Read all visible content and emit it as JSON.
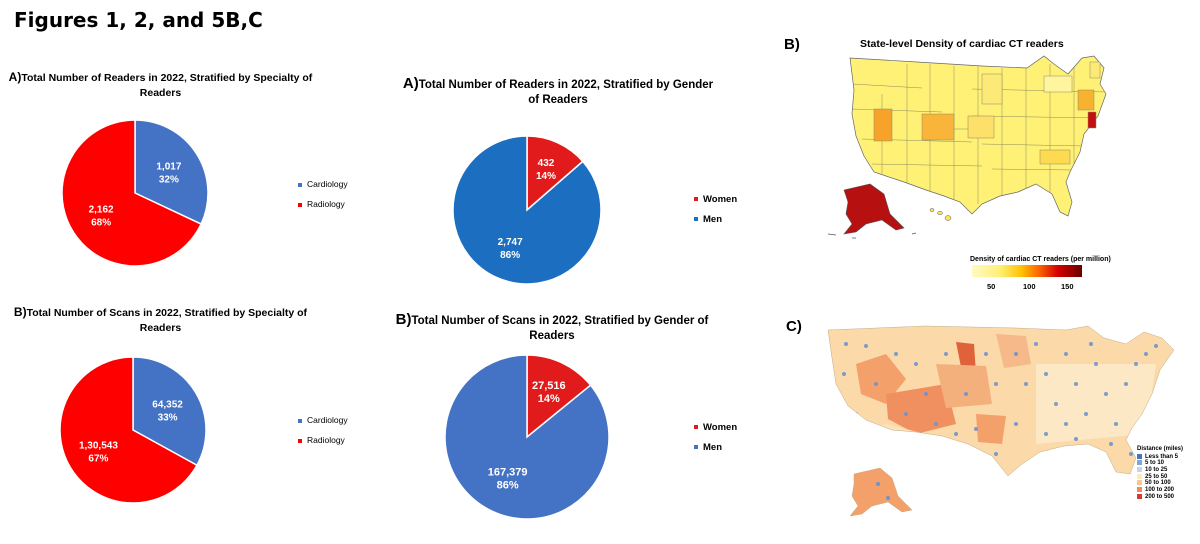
{
  "figure_title": "Figures 1, 2, and 5B,C",
  "colors": {
    "cardiology": "#4472C4",
    "radiology": "#FF0000",
    "women": "#E11B1B",
    "men_readers": "#1C6EC0",
    "men_scans": "#4472C4"
  },
  "chart_data": [
    {
      "id": "readers_specialty",
      "type": "pie",
      "label": "A)",
      "title": "Total Number of Readers in 2022, Stratified by Specialty of Readers",
      "categories": [
        "Cardiology",
        "Radiology"
      ],
      "values": [
        1017,
        2162
      ],
      "value_labels": [
        "1,017",
        "2,162"
      ],
      "percent_labels": [
        "32%",
        "68%"
      ],
      "legend": [
        "Cardiology",
        "Radiology"
      ]
    },
    {
      "id": "readers_gender",
      "type": "pie",
      "label": "A)",
      "title": "Total Number of Readers in 2022, Stratified by Gender of Readers",
      "categories": [
        "Women",
        "Men"
      ],
      "values": [
        432,
        2747
      ],
      "value_labels": [
        "432",
        "2,747"
      ],
      "percent_labels": [
        "14%",
        "86%"
      ],
      "legend": [
        "Women",
        "Men"
      ]
    },
    {
      "id": "scans_specialty",
      "type": "pie",
      "label": "B)",
      "title": "Total Number of Scans in 2022, Stratified by Specialty of Readers",
      "categories": [
        "Cardiology",
        "Radiology"
      ],
      "values": [
        64352,
        130543
      ],
      "value_labels": [
        "64,352",
        "1,30,543"
      ],
      "percent_labels": [
        "33%",
        "67%"
      ],
      "legend": [
        "Cardiology",
        "Radiology"
      ]
    },
    {
      "id": "scans_gender",
      "type": "pie",
      "label": "B)",
      "title": "Total Number of Scans in 2022, Stratified by Gender of Readers",
      "categories": [
        "Women",
        "Men"
      ],
      "values": [
        27516,
        167379
      ],
      "value_labels": [
        "27,516",
        "167,379"
      ],
      "percent_labels": [
        "14%",
        "86%"
      ],
      "legend": [
        "Women",
        "Men"
      ]
    },
    {
      "id": "state_density_map",
      "type": "heatmap",
      "label": "B)",
      "title": "State-level Density of cardiac CT readers",
      "colorbar_title": "Density of cardiac CT readers (per million)",
      "colorbar_ticks": [
        "50",
        "100",
        "150"
      ],
      "colorbar_range": [
        0,
        160
      ]
    },
    {
      "id": "distance_map",
      "type": "heatmap",
      "label": "C)",
      "legend_title": "Distance (miles)",
      "legend": [
        "Less than 5",
        "5 to 10",
        "10 to 25",
        "25 to 50",
        "50 to 100",
        "100 to 200",
        "200 to 500"
      ],
      "legend_colors": [
        "#4A74B8",
        "#7FA6D6",
        "#C2D5EA",
        "#FCEBB6",
        "#F9C98C",
        "#F08A5C",
        "#D73A2A"
      ]
    }
  ]
}
